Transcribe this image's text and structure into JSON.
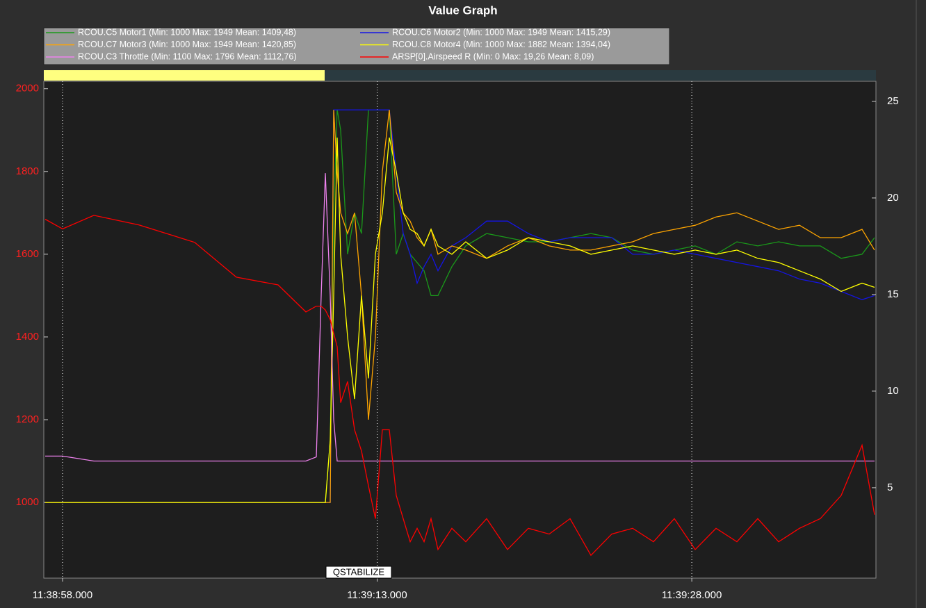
{
  "chart_data": {
    "type": "line",
    "title": "Value Graph",
    "x": [
      "11:38:57.171",
      "11:38:58.000",
      "11:38:59.492",
      "11:39:01.646",
      "11:39:04.298",
      "11:39:06.286",
      "11:39:08.275",
      "11:39:09.601",
      "11:39:10.098",
      "11:39:10.330",
      "11:39:10.529",
      "11:39:10.761",
      "11:39:10.927",
      "11:39:11.092",
      "11:39:11.258",
      "11:39:11.590",
      "11:39:11.921",
      "11:39:12.253",
      "11:39:12.584",
      "11:39:12.916",
      "11:39:13.247",
      "11:39:13.578",
      "11:39:13.910",
      "11:39:14.241",
      "11:39:14.573",
      "11:39:14.904",
      "11:39:15.236",
      "11:39:15.567",
      "11:39:15.899",
      "11:39:16.562",
      "11:39:17.225",
      "11:39:18.219",
      "11:39:19.213",
      "11:39:20.208",
      "11:39:21.202",
      "11:39:22.197",
      "11:39:23.191",
      "11:39:24.186",
      "11:39:25.180",
      "11:39:26.175",
      "11:39:27.169",
      "11:39:28.163",
      "11:39:29.157",
      "11:39:30.152",
      "11:39:31.146",
      "11:39:32.141",
      "11:39:33.135",
      "11:39:34.130",
      "11:39:35.124",
      "11:39:36.118",
      "11:39:36.715"
    ],
    "series": [
      {
        "name": "RCOU.C5 Motor1 (Min: 1000 Max: 1949 Mean: 1409,48)",
        "color": "#1a9a1a",
        "values": [
          1000,
          1000,
          1000,
          1000,
          1000,
          1000,
          1000,
          1000,
          1000,
          1000,
          1000,
          1150,
          1700,
          1950,
          1900,
          1600,
          1700,
          1650,
          1949,
          1949,
          1949,
          1949,
          1600,
          1650,
          1600,
          1580,
          1560,
          1500,
          1500,
          1570,
          1620,
          1650,
          1640,
          1630,
          1630,
          1640,
          1650,
          1640,
          1610,
          1600,
          1610,
          1620,
          1600,
          1630,
          1620,
          1630,
          1620,
          1620,
          1590,
          1600,
          1640
        ]
      },
      {
        "name": "RCOU.C6 Motor2 (Min: 1000 Max: 1949 Mean: 1415,29)",
        "color": "#1414e6",
        "values": [
          1000,
          1000,
          1000,
          1000,
          1000,
          1000,
          1000,
          1000,
          1000,
          1000,
          1000,
          1000,
          1949,
          1949,
          1949,
          1949,
          1949,
          1949,
          1949,
          1949,
          1949,
          1949,
          1800,
          1650,
          1600,
          1530,
          1570,
          1600,
          1560,
          1620,
          1640,
          1680,
          1680,
          1650,
          1630,
          1640,
          1640,
          1640,
          1600,
          1600,
          1610,
          1600,
          1590,
          1580,
          1570,
          1560,
          1540,
          1530,
          1510,
          1490,
          1500
        ]
      },
      {
        "name": "RCOU.C7 Motor3 (Min: 1000 Max: 1949 Mean: 1420,85)",
        "color": "#ffa500",
        "values": [
          1000,
          1000,
          1000,
          1000,
          1000,
          1000,
          1000,
          1000,
          1000,
          1000,
          1000,
          1000,
          1949,
          1800,
          1700,
          1650,
          1700,
          1500,
          1200,
          1400,
          1800,
          1949,
          1750,
          1700,
          1680,
          1640,
          1620,
          1660,
          1600,
          1620,
          1610,
          1590,
          1620,
          1640,
          1620,
          1610,
          1610,
          1620,
          1630,
          1650,
          1660,
          1670,
          1690,
          1700,
          1680,
          1660,
          1670,
          1640,
          1640,
          1660,
          1610
        ]
      },
      {
        "name": "RCOU.C8 Motor4 (Min: 1000 Max: 1882 Mean: 1394,04)",
        "color": "#ffff00",
        "values": [
          1000,
          1000,
          1000,
          1000,
          1000,
          1000,
          1000,
          1000,
          1000,
          1000,
          1000,
          1150,
          1500,
          1882,
          1600,
          1400,
          1250,
          1500,
          1300,
          1600,
          1700,
          1882,
          1800,
          1700,
          1660,
          1650,
          1620,
          1660,
          1620,
          1600,
          1630,
          1590,
          1610,
          1640,
          1630,
          1620,
          1600,
          1610,
          1620,
          1610,
          1600,
          1610,
          1600,
          1610,
          1590,
          1580,
          1560,
          1540,
          1510,
          1530,
          1520
        ]
      },
      {
        "name": "RCOU.C3 Throttle (Min: 1100 Max: 1796 Mean: 1112,76)",
        "color": "#ee82ee",
        "values": [
          1112,
          1112,
          1100,
          1100,
          1100,
          1100,
          1100,
          1100,
          1110,
          1500,
          1796,
          1500,
          1200,
          1100,
          1100,
          1100,
          1100,
          1100,
          1100,
          1100,
          1100,
          1100,
          1100,
          1100,
          1100,
          1100,
          1100,
          1100,
          1100,
          1100,
          1100,
          1100,
          1100,
          1100,
          1100,
          1100,
          1100,
          1100,
          1100,
          1100,
          1100,
          1100,
          1100,
          1100,
          1100,
          1100,
          1100,
          1100,
          1100,
          1100,
          1100
        ]
      },
      {
        "name": "ARSP[0].Airspeed  R (Min: 0 Max: 19,26 Mean: 8,09)",
        "color": "#ff0000",
        "axis": "y2",
        "values": [
          18.9,
          18.4,
          19.1,
          18.6,
          17.7,
          15.9,
          15.5,
          14.1,
          14.4,
          14.4,
          14.2,
          13.7,
          13.0,
          12.3,
          9.4,
          10.5,
          8.0,
          6.9,
          5.1,
          3.4,
          8.0,
          8.0,
          4.6,
          3.4,
          2.2,
          2.9,
          2.2,
          3.4,
          1.8,
          2.9,
          2.2,
          3.4,
          1.8,
          2.9,
          2.6,
          3.4,
          1.5,
          2.6,
          2.9,
          2.2,
          3.4,
          1.8,
          2.9,
          2.2,
          3.4,
          2.2,
          2.9,
          3.4,
          4.6,
          7.2,
          3.6
        ]
      }
    ],
    "xlim": [
      "11:38:57.105",
      "11:39:36.780"
    ],
    "xticks": [
      "11:38:58.000",
      "11:39:13.000",
      "11:39:28.000"
    ],
    "ylim": [
      817,
      2018
    ],
    "yticks": [
      1000,
      1200,
      1400,
      1600,
      1800,
      2000
    ],
    "y2lim": [
      0.32,
      26.04
    ],
    "y2ticks": [
      5,
      10,
      15,
      20,
      25
    ],
    "annotation": "QSTABILIZE",
    "grid": true
  }
}
